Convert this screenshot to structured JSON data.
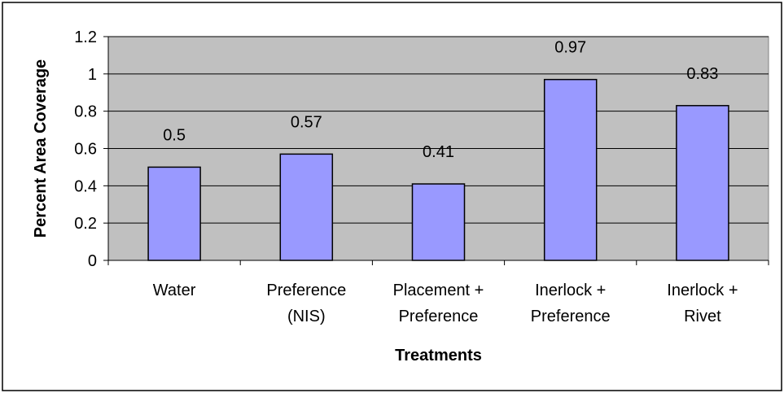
{
  "chart_data": {
    "type": "bar",
    "categories": [
      [
        "Water"
      ],
      [
        "Preference",
        "(NIS)"
      ],
      [
        "Placement +",
        "Preference"
      ],
      [
        "Inerlock +",
        "Preference"
      ],
      [
        "Inerlock +",
        "Rivet"
      ]
    ],
    "values": [
      0.5,
      0.57,
      0.41,
      0.97,
      0.83
    ],
    "data_labels": [
      "0.5",
      "0.57",
      "0.41",
      "0.97",
      "0.83"
    ],
    "title": "",
    "xlabel": "Treatments",
    "ylabel": "Percent Area Coverage",
    "ylim": [
      0,
      1.2
    ],
    "yticks": [
      0,
      0.2,
      0.4,
      0.6,
      0.8,
      1,
      1.2
    ],
    "ytick_labels": [
      "0",
      "0.2",
      "0.4",
      "0.6",
      "0.8",
      "1",
      "1.2"
    ],
    "grid": true,
    "legend": "none",
    "colors": {
      "plot_area": "#c0c0c0",
      "bar_fill": "#9999ff",
      "bar_stroke": "#000000",
      "gridline": "#000000",
      "frame_border": "#000000"
    }
  }
}
